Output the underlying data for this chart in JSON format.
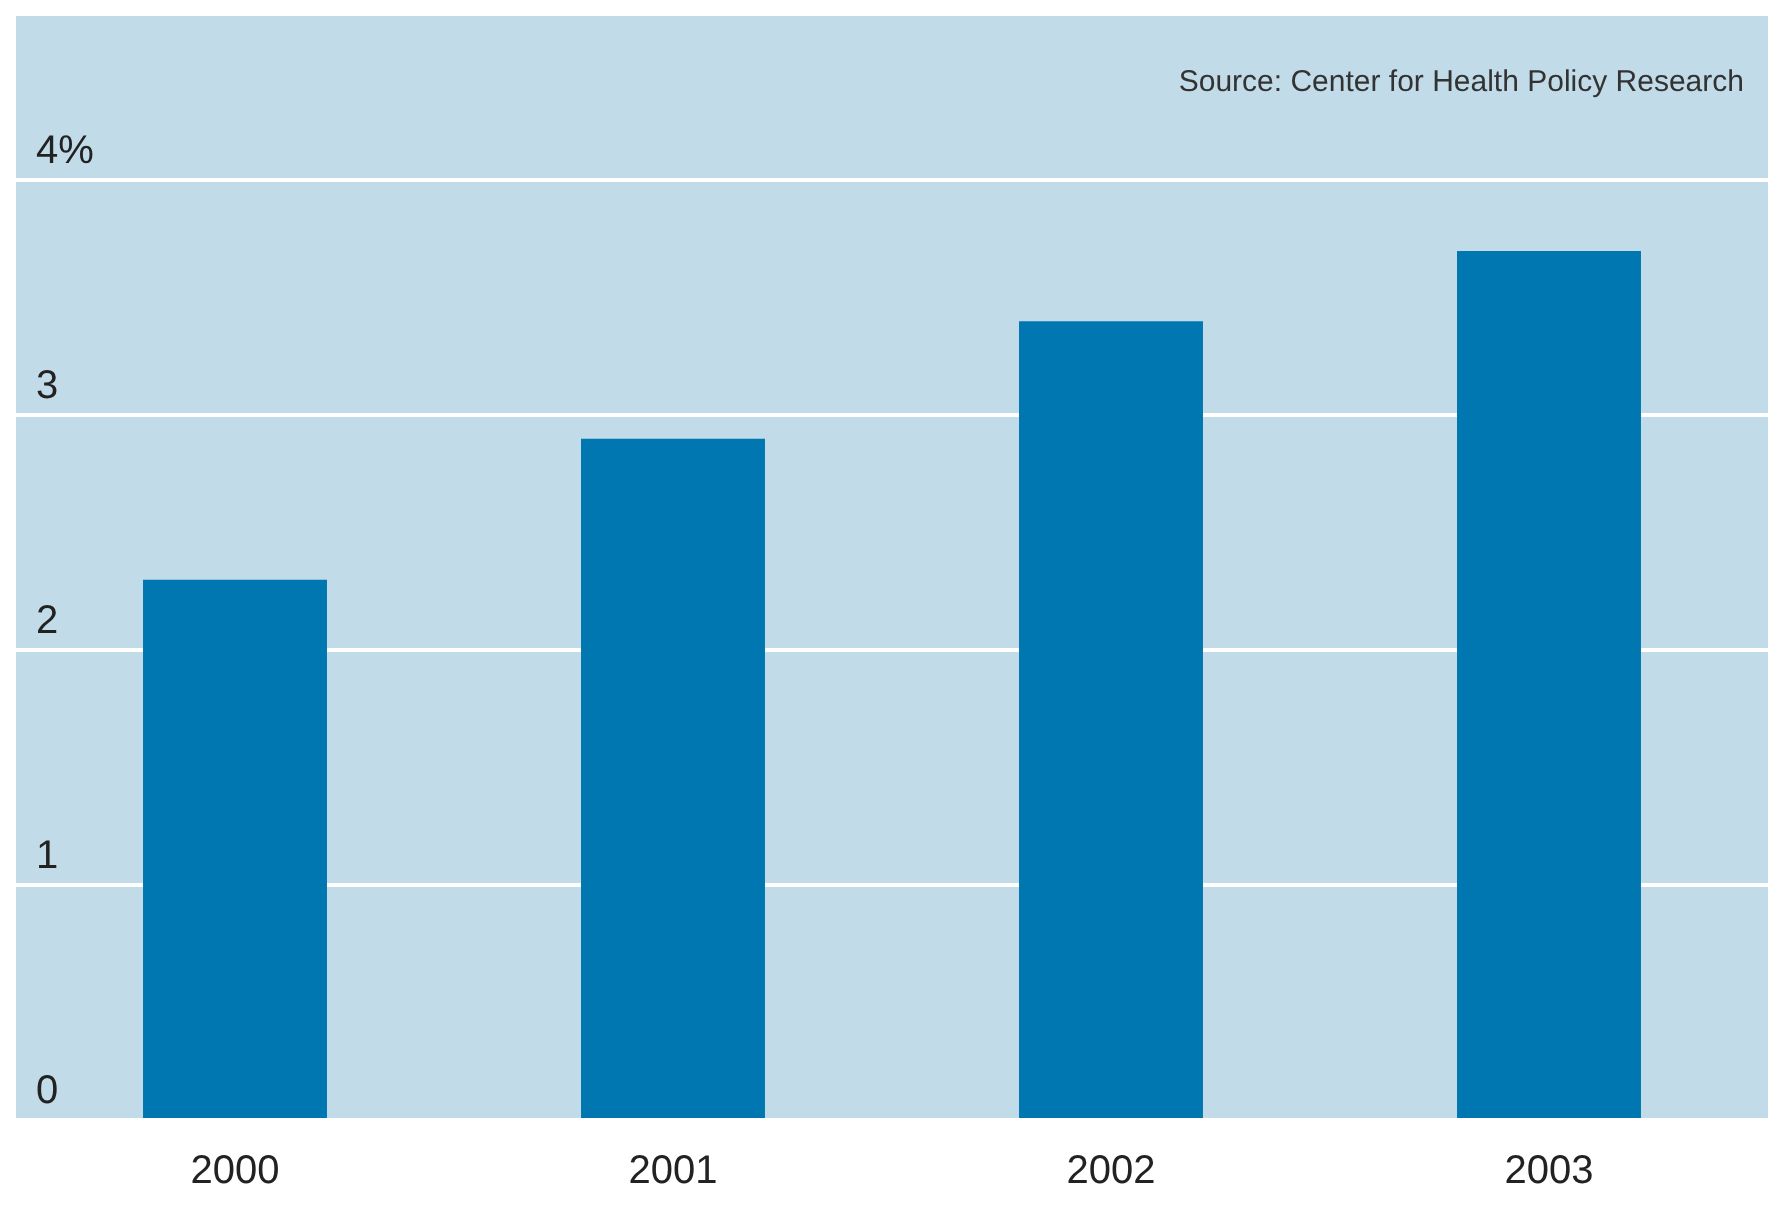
{
  "chart_data": {
    "type": "bar",
    "categories": [
      "2000",
      "2001",
      "2002",
      "2003"
    ],
    "values": [
      2.3,
      2.9,
      3.4,
      3.7
    ],
    "color": "#0077b0",
    "ylim": [
      0,
      4.7
    ],
    "yticks": [
      0,
      1,
      2,
      3,
      {
        "value": 4,
        "label": "4%"
      }
    ],
    "grid": "y",
    "legend": false,
    "annotations": [
      "Source: Center for Health Policy Research"
    ]
  }
}
